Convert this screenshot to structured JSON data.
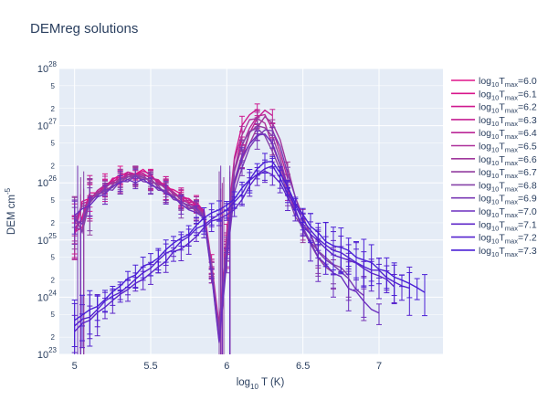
{
  "chart_data": {
    "type": "line",
    "title": "DEMreg solutions",
    "xlabel": {
      "base": "log",
      "sub": "10",
      "rest": " T (K)"
    },
    "ylabel": {
      "base": "DEM cm",
      "sup": "-5"
    },
    "xlim": [
      4.9,
      7.42
    ],
    "ylim_log10": [
      23,
      28
    ],
    "y_scale": "log",
    "x_ticks": [
      5,
      5.5,
      6,
      6.5,
      7
    ],
    "x_tick_labels": [
      "5",
      "5.5",
      "6",
      "6.5",
      "7"
    ],
    "y_major_ticks": [
      {
        "exp": 23,
        "label_base": "10",
        "label_sup": "23"
      },
      {
        "exp": 24,
        "label_base": "10",
        "label_sup": "24"
      },
      {
        "exp": 25,
        "label_base": "10",
        "label_sup": "25"
      },
      {
        "exp": 26,
        "label_base": "10",
        "label_sup": "26"
      },
      {
        "exp": 27,
        "label_base": "10",
        "label_sup": "27"
      },
      {
        "exp": 28,
        "label_base": "10",
        "label_sup": "28"
      }
    ],
    "y_minor_labels": [
      "2",
      "5"
    ],
    "grid": true,
    "legend_position": "right",
    "background": "#e5ecf6",
    "series": [
      {
        "name": "log10Tmax=6.0",
        "label_base": "log",
        "label_sub": "10",
        "label_T": "T",
        "label_tsub": "max",
        "label_val": "=6.0",
        "color": "#e0138a",
        "tmax": 6.0
      },
      {
        "name": "log10Tmax=6.1",
        "label_base": "log",
        "label_sub": "10",
        "label_T": "T",
        "label_tsub": "max",
        "label_val": "=6.1",
        "color": "#d8158b",
        "tmax": 6.1
      },
      {
        "name": "log10Tmax=6.2",
        "label_base": "log",
        "label_sub": "10",
        "label_T": "T",
        "label_tsub": "max",
        "label_val": "=6.2",
        "color": "#cf198f",
        "tmax": 6.2
      },
      {
        "name": "log10Tmax=6.3",
        "label_base": "log",
        "label_sub": "10",
        "label_T": "T",
        "label_tsub": "max",
        "label_val": "=6.3",
        "color": "#c51f93",
        "tmax": 6.3
      },
      {
        "name": "log10Tmax=6.4",
        "label_base": "log",
        "label_sub": "10",
        "label_T": "T",
        "label_tsub": "max",
        "label_val": "=6.4",
        "color": "#ba2796",
        "tmax": 6.4
      },
      {
        "name": "log10Tmax=6.5",
        "label_base": "log",
        "label_sub": "10",
        "label_T": "T",
        "label_tsub": "max",
        "label_val": "=6.5",
        "color": "#ad309a",
        "tmax": 6.5
      },
      {
        "name": "log10Tmax=6.6",
        "label_base": "log",
        "label_sub": "10",
        "label_T": "T",
        "label_tsub": "max",
        "label_val": "=6.6",
        "color": "#a0379c",
        "tmax": 6.6
      },
      {
        "name": "log10Tmax=6.7",
        "label_base": "log",
        "label_sub": "10",
        "label_T": "T",
        "label_tsub": "max",
        "label_val": "=6.7",
        "color": "#933e9f",
        "tmax": 6.7
      },
      {
        "name": "log10Tmax=6.8",
        "label_base": "log",
        "label_sub": "10",
        "label_T": "T",
        "label_tsub": "max",
        "label_val": "=6.8",
        "color": "#8643a8",
        "tmax": 6.8
      },
      {
        "name": "log10Tmax=6.9",
        "label_base": "log",
        "label_sub": "10",
        "label_T": "T",
        "label_tsub": "max",
        "label_val": "=6.9",
        "color": "#7a39b4",
        "tmax": 6.9
      },
      {
        "name": "log10Tmax=7.0",
        "label_base": "log",
        "label_sub": "10",
        "label_T": "T",
        "label_tsub": "max",
        "label_val": "=7.0",
        "color": "#6c2fbf",
        "tmax": 7.0
      },
      {
        "name": "log10Tmax=7.1",
        "label_base": "log",
        "label_sub": "10",
        "label_T": "T",
        "label_tsub": "max",
        "label_val": "=7.1",
        "color": "#5e26c8",
        "tmax": 7.1
      },
      {
        "name": "log10Tmax=7.2",
        "label_base": "log",
        "label_sub": "10",
        "label_T": "T",
        "label_tsub": "max",
        "label_val": "=7.2",
        "color": "#5422cf",
        "tmax": 7.2
      },
      {
        "name": "log10Tmax=7.3",
        "label_base": "log",
        "label_sub": "10",
        "label_T": "T",
        "label_tsub": "max",
        "label_val": "=7.3",
        "color": "#4a1fd6",
        "tmax": 7.3
      }
    ]
  }
}
